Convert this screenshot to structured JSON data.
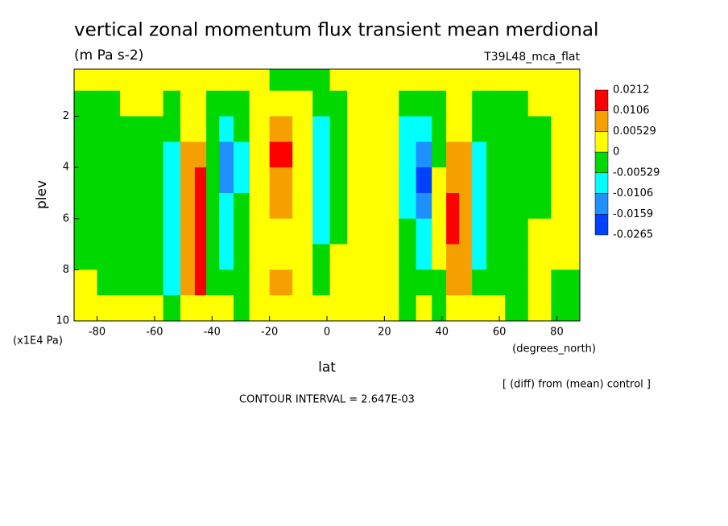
{
  "chart_data": {
    "type": "contour",
    "title": "vertical zonal momentum flux transient mean merdional",
    "subtitle": "(m Pa s-2)",
    "run_label": "T39L48_mca_flat",
    "x_label": "lat",
    "x_units": "(degrees_north)",
    "y_label": "plev",
    "y_units": "(x1E4 Pa)",
    "note": "[ (diff) from (mean) control ]",
    "contour_interval": "CONTOUR INTERVAL = 2.647E-03",
    "xlim": [
      -88,
      88
    ],
    "ylim": [
      10,
      0.16
    ],
    "xticks": [
      -80,
      -60,
      -40,
      -20,
      0,
      20,
      40,
      60,
      80
    ],
    "yticks": [
      2,
      4,
      6,
      8,
      10
    ],
    "levels": [
      0.0212,
      0.0106,
      0.00529,
      0,
      -0.00529,
      -0.0106,
      -0.0159,
      -0.0265
    ],
    "colors": [
      "#ff0000",
      "#f5a000",
      "#ffff00",
      "#00d800",
      "#00ffff",
      "#1e90ff",
      "#0040ff"
    ],
    "x": [
      -84,
      -76,
      -68,
      -60,
      -54,
      -48,
      -44,
      -40,
      -35,
      -30,
      -24,
      -16,
      -8,
      -2,
      4,
      10,
      16,
      22,
      28,
      34,
      39,
      44,
      48,
      53,
      58,
      66,
      74,
      82
    ],
    "y": [
      0.5,
      1.5,
      2.5,
      3.5,
      4.5,
      5.5,
      6.5,
      7.5,
      8.5,
      9.5
    ],
    "z": [
      [
        0.002,
        0.002,
        0.002,
        0.002,
        0.002,
        0.002,
        0.002,
        0.002,
        0.002,
        0.002,
        0.002,
        -0.002,
        -0.002,
        -0.002,
        0.002,
        0.002,
        0.002,
        0.002,
        0.002,
        0.002,
        0.002,
        0.002,
        0.002,
        0.002,
        0.002,
        0.002,
        0.002,
        0.002
      ],
      [
        -0.002,
        -0.002,
        0.002,
        0.002,
        -0.002,
        0.002,
        0.002,
        -0.002,
        -0.002,
        -0.002,
        0.002,
        0.002,
        0.002,
        -0.002,
        -0.002,
        0.002,
        0.002,
        0.002,
        -0.002,
        -0.002,
        -0.002,
        0.002,
        0.002,
        -0.002,
        -0.002,
        -0.002,
        0.002,
        0.002
      ],
      [
        -0.002,
        -0.002,
        -0.002,
        -0.002,
        -0.002,
        0.002,
        0.002,
        -0.002,
        -0.008,
        -0.002,
        0.002,
        0.008,
        0.002,
        -0.008,
        -0.002,
        0.002,
        0.002,
        0.002,
        -0.008,
        -0.008,
        -0.002,
        0.002,
        0.002,
        -0.002,
        -0.002,
        -0.002,
        -0.002,
        0.002
      ],
      [
        -0.002,
        -0.002,
        -0.002,
        -0.002,
        -0.008,
        0.008,
        0.008,
        -0.002,
        -0.013,
        -0.008,
        0.002,
        0.016,
        0.002,
        -0.008,
        -0.002,
        0.002,
        0.002,
        0.002,
        -0.008,
        -0.013,
        -0.002,
        0.008,
        0.008,
        -0.008,
        -0.002,
        -0.002,
        -0.002,
        0.002
      ],
      [
        -0.002,
        -0.002,
        -0.002,
        -0.002,
        -0.008,
        0.008,
        0.016,
        -0.002,
        -0.013,
        -0.008,
        0.002,
        0.008,
        0.002,
        -0.008,
        -0.002,
        0.002,
        0.002,
        0.002,
        -0.008,
        -0.02,
        0.002,
        0.008,
        0.008,
        -0.008,
        -0.002,
        -0.002,
        -0.002,
        0.002
      ],
      [
        -0.002,
        -0.002,
        -0.002,
        -0.002,
        -0.008,
        0.008,
        0.016,
        -0.002,
        -0.008,
        -0.002,
        0.002,
        0.008,
        0.002,
        -0.008,
        -0.002,
        0.002,
        0.002,
        0.002,
        -0.008,
        -0.013,
        0.002,
        0.016,
        0.008,
        -0.008,
        -0.002,
        -0.002,
        -0.002,
        0.002
      ],
      [
        -0.002,
        -0.002,
        -0.002,
        -0.002,
        -0.008,
        0.008,
        0.016,
        -0.002,
        -0.008,
        -0.002,
        0.002,
        0.002,
        0.002,
        -0.008,
        -0.002,
        0.002,
        0.002,
        0.002,
        -0.002,
        -0.008,
        0.002,
        0.016,
        0.008,
        -0.008,
        -0.002,
        -0.002,
        0.002,
        0.002
      ],
      [
        -0.002,
        -0.002,
        -0.002,
        -0.002,
        -0.008,
        0.008,
        0.016,
        -0.002,
        -0.008,
        -0.002,
        0.002,
        0.002,
        0.002,
        -0.002,
        0.002,
        0.002,
        0.002,
        0.002,
        -0.002,
        -0.008,
        0.002,
        0.008,
        0.008,
        -0.008,
        -0.002,
        -0.002,
        0.002,
        0.002
      ],
      [
        0.002,
        -0.002,
        -0.002,
        -0.002,
        -0.008,
        0.008,
        0.016,
        -0.002,
        -0.002,
        -0.002,
        0.002,
        0.008,
        0.002,
        -0.002,
        0.002,
        0.002,
        0.002,
        0.002,
        -0.002,
        -0.002,
        -0.002,
        0.008,
        0.008,
        -0.002,
        -0.002,
        -0.002,
        0.002,
        -0.002
      ],
      [
        0.002,
        0.002,
        0.002,
        0.002,
        -0.002,
        0.002,
        0.002,
        0.002,
        0.002,
        -0.002,
        0.002,
        0.002,
        0.002,
        0.002,
        0.002,
        0.002,
        0.002,
        0.002,
        -0.002,
        0.002,
        -0.002,
        0.002,
        0.002,
        0.002,
        0.002,
        -0.002,
        0.002,
        -0.002
      ]
    ]
  }
}
